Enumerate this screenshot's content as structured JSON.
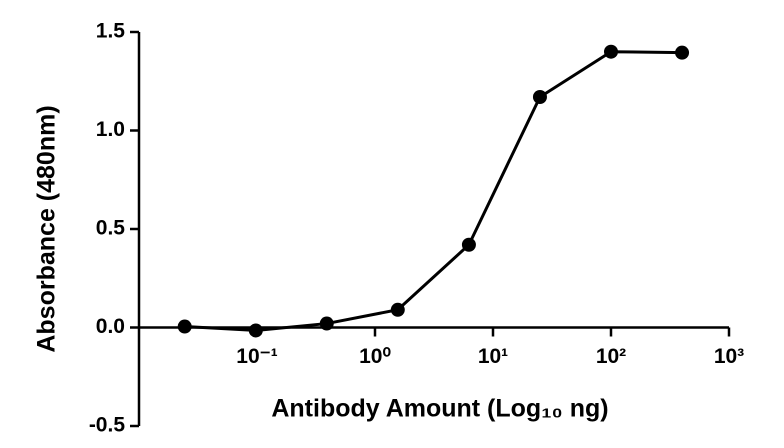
{
  "chart_data": {
    "type": "line",
    "x_label": "Antibody Amount (Log₁₀ ng)",
    "y_label": "Absorbance (480nm)",
    "x": [
      0.0244,
      0.0977,
      0.39,
      1.56,
      6.25,
      25,
      100,
      400
    ],
    "values": [
      0.005,
      -0.015,
      0.02,
      0.09,
      0.42,
      1.17,
      1.4,
      1.395
    ],
    "color": "#000000",
    "xscale": "log",
    "xlim": [
      0.01,
      1000
    ],
    "xticks": [
      {
        "value": 0.1,
        "label": "10⁻¹"
      },
      {
        "value": 1,
        "label": "10⁰"
      },
      {
        "value": 10,
        "label": "10¹"
      },
      {
        "value": 100,
        "label": "10²"
      },
      {
        "value": 1000,
        "label": "10³"
      }
    ],
    "ylim": [
      -0.5,
      1.5
    ],
    "yticks": [
      {
        "value": 1.5,
        "label": "1.5"
      },
      {
        "value": 1,
        "label": "1.0"
      },
      {
        "value": 0.5,
        "label": "0.5"
      },
      {
        "value": 0,
        "label": "0.0"
      },
      {
        "value": -0.5,
        "label": "-0.5"
      }
    ]
  }
}
